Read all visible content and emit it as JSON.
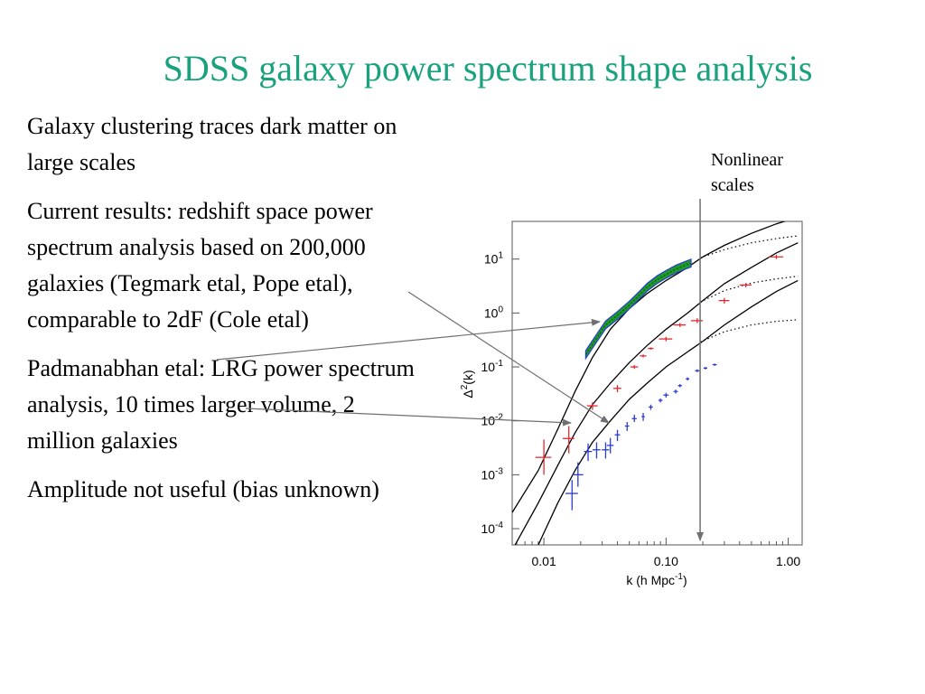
{
  "slide": {
    "title": "SDSS galaxy power spectrum shape analysis",
    "bullets": [
      "Galaxy clustering traces dark matter on large scales",
      "Current results: redshift space power spectrum analysis based on 200,000 galaxies (Tegmark etal, Pope etal), comparable to 2dF (Cole etal)",
      "Padmanabhan etal: LRG power spectrum analysis, 10 times larger volume, 2 million galaxies",
      "Amplitude not useful (bias unknown)"
    ],
    "annotation": {
      "line1": "Nonlinear",
      "line2": "scales"
    }
  },
  "chart_data": {
    "type": "line",
    "xlabel": "k (h Mpc",
    "xlabel_sup": "-1",
    "xlabel_close": ")",
    "ylabel": "Δ",
    "ylabel_sup": "2",
    "ylabel_tail": "(k)",
    "xscale": "log",
    "yscale": "log",
    "xlim": [
      0.0055,
      1.3
    ],
    "ylim": [
      5e-05,
      50
    ],
    "x_ticks": [
      {
        "value": 0.01,
        "label": "0.01"
      },
      {
        "value": 0.1,
        "label": "0.10"
      },
      {
        "value": 1.0,
        "label": "1.00"
      }
    ],
    "y_ticks": [
      {
        "value": 10,
        "base": "10",
        "exp": "1"
      },
      {
        "value": 1,
        "base": "10",
        "exp": "0"
      },
      {
        "value": 0.1,
        "base": "10",
        "exp": "-1"
      },
      {
        "value": 0.01,
        "base": "10",
        "exp": "-2"
      },
      {
        "value": 0.001,
        "base": "10",
        "exp": "-3"
      },
      {
        "value": 0.0001,
        "base": "10",
        "exp": "-4"
      }
    ],
    "nonlinear_k": 0.19,
    "colors": {
      "red": "#e8262a",
      "blue": "#2a3bd6",
      "green": "#1d9a2a",
      "curve": "#000000"
    },
    "series": [
      {
        "kind": "curve",
        "points": [
          [
            0.0055,
            0.0002
          ],
          [
            0.009,
            0.0012
          ],
          [
            0.013,
            0.007
          ],
          [
            0.018,
            0.035
          ],
          [
            0.025,
            0.15
          ],
          [
            0.035,
            0.5
          ],
          [
            0.05,
            1.2
          ],
          [
            0.07,
            2.3
          ],
          [
            0.1,
            4
          ],
          [
            0.15,
            7
          ],
          [
            0.2,
            11
          ],
          [
            0.3,
            18
          ],
          [
            0.5,
            30
          ],
          [
            0.8,
            45
          ],
          [
            1.2,
            60
          ]
        ]
      },
      {
        "kind": "curve",
        "points": [
          [
            0.0055,
            4e-05
          ],
          [
            0.009,
            0.0003
          ],
          [
            0.013,
            0.0015
          ],
          [
            0.018,
            0.006
          ],
          [
            0.025,
            0.02
          ],
          [
            0.035,
            0.05
          ],
          [
            0.05,
            0.12
          ],
          [
            0.07,
            0.25
          ],
          [
            0.1,
            0.5
          ],
          [
            0.15,
            1
          ],
          [
            0.2,
            1.7
          ],
          [
            0.3,
            3.5
          ],
          [
            0.5,
            7
          ],
          [
            0.8,
            13
          ],
          [
            1.2,
            20
          ]
        ]
      },
      {
        "kind": "curve",
        "points": [
          [
            0.0055,
            6e-06
          ],
          [
            0.009,
            5e-05
          ],
          [
            0.013,
            0.0003
          ],
          [
            0.018,
            0.0012
          ],
          [
            0.025,
            0.004
          ],
          [
            0.035,
            0.01
          ],
          [
            0.05,
            0.025
          ],
          [
            0.07,
            0.05
          ],
          [
            0.1,
            0.1
          ],
          [
            0.15,
            0.19
          ],
          [
            0.2,
            0.3
          ],
          [
            0.3,
            0.6
          ],
          [
            0.5,
            1.3
          ],
          [
            0.8,
            2.5
          ],
          [
            1.2,
            4
          ]
        ]
      },
      {
        "kind": "dotted",
        "points": [
          [
            0.19,
            10.5
          ],
          [
            0.3,
            15
          ],
          [
            0.5,
            20
          ],
          [
            0.8,
            24
          ],
          [
            1.2,
            27
          ]
        ]
      },
      {
        "kind": "dotted",
        "points": [
          [
            0.19,
            1.6
          ],
          [
            0.3,
            2.6
          ],
          [
            0.5,
            3.6
          ],
          [
            0.8,
            4.3
          ],
          [
            1.2,
            4.8
          ]
        ]
      },
      {
        "kind": "dotted",
        "points": [
          [
            0.19,
            0.29
          ],
          [
            0.3,
            0.45
          ],
          [
            0.5,
            0.6
          ],
          [
            0.8,
            0.7
          ],
          [
            1.2,
            0.75
          ]
        ]
      },
      {
        "kind": "band",
        "points": [
          [
            0.022,
            0.17
          ],
          [
            0.026,
            0.3
          ],
          [
            0.032,
            0.6
          ],
          [
            0.04,
            0.9
          ],
          [
            0.05,
            1.4
          ],
          [
            0.06,
            2.1
          ],
          [
            0.07,
            3
          ],
          [
            0.085,
            4.2
          ],
          [
            0.1,
            5.2
          ],
          [
            0.12,
            6.5
          ],
          [
            0.14,
            7.5
          ],
          [
            0.16,
            8.4
          ]
        ]
      },
      {
        "kind": "errbars",
        "color": "red",
        "points": [
          {
            "k": 0.01,
            "v": 0.0021,
            "dk": 0.003,
            "vlo": 0.001,
            "vhi": 0.0045
          },
          {
            "k": 0.016,
            "v": 0.0047,
            "dk": 0.0035,
            "vlo": 0.0025,
            "vhi": 0.008
          },
          {
            "k": 0.025,
            "v": 0.019,
            "dk": 0.005,
            "vlo": 0.016,
            "vhi": 0.022
          },
          {
            "k": 0.04,
            "v": 0.04,
            "dk": 0.006,
            "vlo": 0.034,
            "vhi": 0.046
          },
          {
            "k": 0.055,
            "v": 0.1,
            "dk": 0.008,
            "vlo": 0.092,
            "vhi": 0.108
          },
          {
            "k": 0.065,
            "v": 0.16,
            "dk": 0.008,
            "vlo": 0.15,
            "vhi": 0.17
          },
          {
            "k": 0.075,
            "v": 0.22,
            "dk": 0.008,
            "vlo": 0.21,
            "vhi": 0.23
          },
          {
            "k": 0.1,
            "v": 0.33,
            "dk": 0.025,
            "vlo": 0.3,
            "vhi": 0.36
          },
          {
            "k": 0.13,
            "v": 0.6,
            "dk": 0.03,
            "vlo": 0.55,
            "vhi": 0.65
          },
          {
            "k": 0.18,
            "v": 0.72,
            "dk": 0.04,
            "vlo": 0.65,
            "vhi": 0.8
          },
          {
            "k": 0.3,
            "v": 1.7,
            "dk": 0.06,
            "vlo": 1.5,
            "vhi": 1.9
          },
          {
            "k": 0.45,
            "v": 3.3,
            "dk": 0.1,
            "vlo": 3,
            "vhi": 3.6
          },
          {
            "k": 0.8,
            "v": 11,
            "dk": 0.22,
            "vlo": 10,
            "vhi": 12
          }
        ]
      },
      {
        "kind": "errbars",
        "color": "blue",
        "points": [
          {
            "k": 0.017,
            "v": 0.00045,
            "dk": 0.004,
            "vlo": 0.00022,
            "vhi": 0.0008
          },
          {
            "k": 0.019,
            "v": 0.001,
            "dk": 0.004,
            "vlo": 0.0006,
            "vhi": 0.0017
          },
          {
            "k": 0.023,
            "v": 0.0027,
            "dk": 0.0035,
            "vlo": 0.0018,
            "vhi": 0.0038
          },
          {
            "k": 0.027,
            "v": 0.0029,
            "dk": 0.004,
            "vlo": 0.002,
            "vhi": 0.004
          },
          {
            "k": 0.032,
            "v": 0.0029,
            "dk": 0.0045,
            "vlo": 0.002,
            "vhi": 0.004
          },
          {
            "k": 0.035,
            "v": 0.0035,
            "dk": 0.0045,
            "vlo": 0.0025,
            "vhi": 0.0048
          },
          {
            "k": 0.04,
            "v": 0.0055,
            "dk": 0.004,
            "vlo": 0.0042,
            "vhi": 0.0068
          },
          {
            "k": 0.048,
            "v": 0.008,
            "dk": 0.004,
            "vlo": 0.0065,
            "vhi": 0.0095
          },
          {
            "k": 0.055,
            "v": 0.011,
            "dk": 0.005,
            "vlo": 0.0095,
            "vhi": 0.013
          },
          {
            "k": 0.065,
            "v": 0.012,
            "dk": 0.004,
            "vlo": 0.01,
            "vhi": 0.014
          },
          {
            "k": 0.075,
            "v": 0.018,
            "dk": 0.006,
            "vlo": 0.016,
            "vhi": 0.02
          },
          {
            "k": 0.09,
            "v": 0.024,
            "dk": 0.007,
            "vlo": 0.022,
            "vhi": 0.026
          },
          {
            "k": 0.1,
            "v": 0.03,
            "dk": 0.01,
            "vlo": 0.027,
            "vhi": 0.033
          },
          {
            "k": 0.12,
            "v": 0.035,
            "dk": 0.01,
            "vlo": 0.032,
            "vhi": 0.038
          },
          {
            "k": 0.13,
            "v": 0.045,
            "dk": 0.01,
            "vlo": 0.042,
            "vhi": 0.048
          },
          {
            "k": 0.15,
            "v": 0.06,
            "dk": 0.01,
            "vlo": 0.056,
            "vhi": 0.064
          },
          {
            "k": 0.18,
            "v": 0.085,
            "dk": 0.015,
            "vlo": 0.08,
            "vhi": 0.09
          },
          {
            "k": 0.21,
            "v": 0.095,
            "dk": 0.015,
            "vlo": 0.09,
            "vhi": 0.1
          },
          {
            "k": 0.25,
            "v": 0.11,
            "dk": 0.02,
            "vlo": 0.105,
            "vhi": 0.115
          }
        ]
      }
    ]
  }
}
